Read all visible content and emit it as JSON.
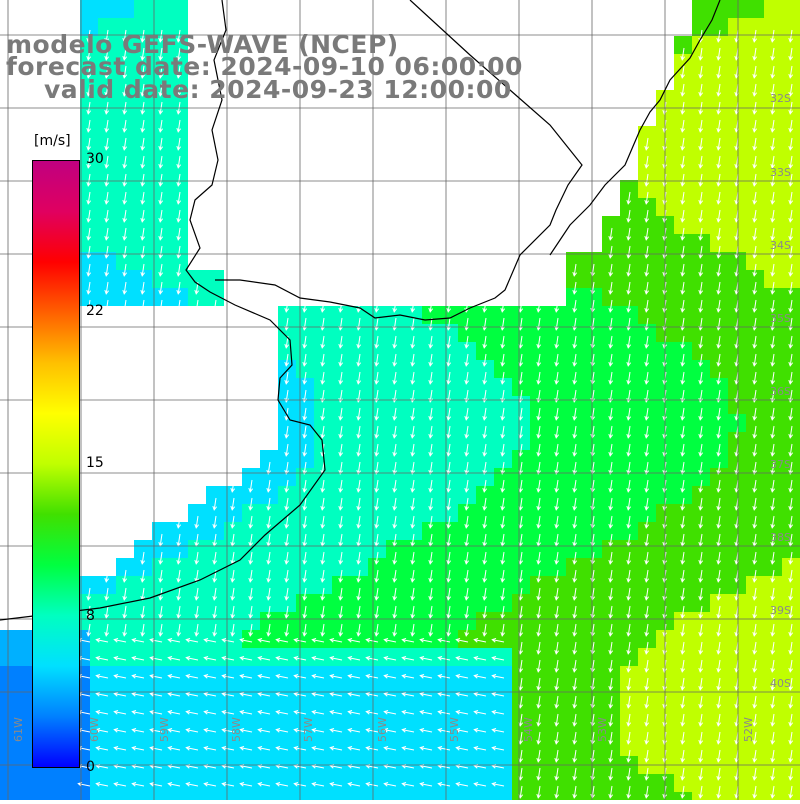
{
  "title": {
    "line1": "modelo GEFS-WAVE (NCEP)",
    "line2": "forecast date: 2024-09-10 06:00:00",
    "line3": "valid date: 2024-09-23 12:00:00"
  },
  "colorbar": {
    "unit": "[m/s]",
    "ticks": [
      "30",
      "22",
      "15",
      "8",
      "0"
    ],
    "min": 0,
    "max": 30,
    "colors": [
      "#0000ff",
      "#0080ff",
      "#00e0ff",
      "#00ffc0",
      "#00ff40",
      "#40e000",
      "#c0ff00",
      "#ffff00",
      "#ffc000",
      "#ff6000",
      "#ff0000",
      "#e00060",
      "#c00080"
    ]
  },
  "axes": {
    "lat_labels": [
      "32S",
      "33S",
      "34S",
      "35S",
      "36S",
      "37S",
      "38S",
      "39S",
      "40S"
    ],
    "lon_labels": [
      "61W",
      "60W",
      "59W",
      "58W",
      "57W",
      "56W",
      "55W",
      "54W",
      "53W",
      "52W"
    ]
  },
  "chart_data": {
    "type": "heatmap",
    "variable": "wind speed",
    "unit": "m/s",
    "field_range": [
      0,
      30
    ],
    "arrows": "white vectors showing wind direction",
    "region": "Rio de la Plata and adjacent South Atlantic",
    "grid": true
  }
}
